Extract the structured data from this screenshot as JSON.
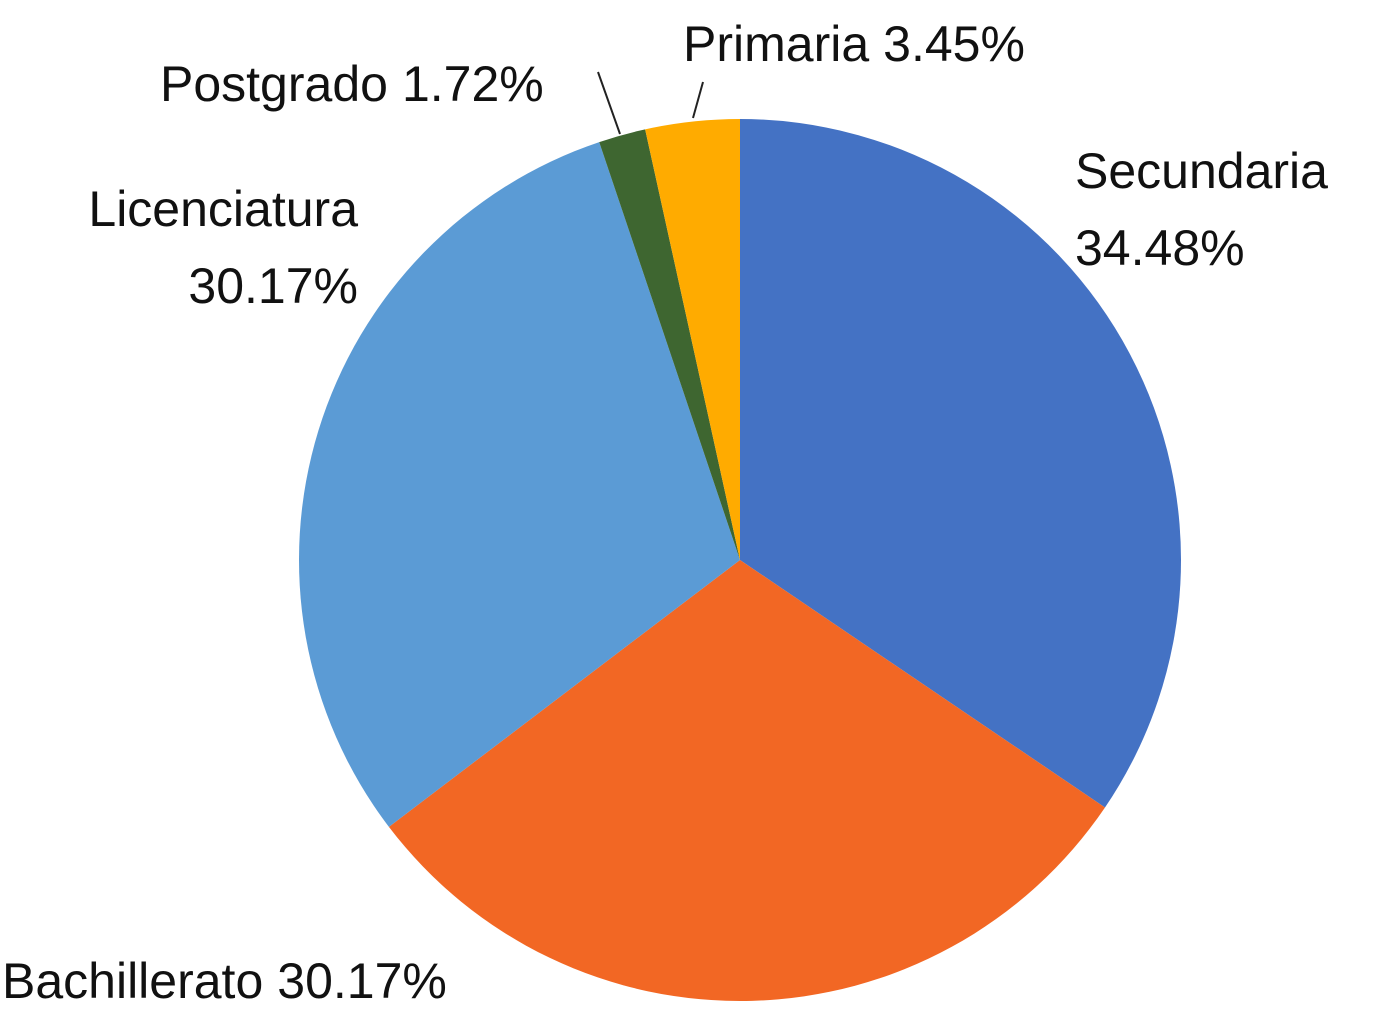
{
  "chart_data": {
    "type": "pie",
    "categories": [
      "Secundaria",
      "Bachillerato",
      "Licenciatura",
      "Postgrado",
      "Primaria"
    ],
    "values": [
      34.48,
      30.17,
      30.17,
      1.72,
      3.45
    ],
    "value_labels": [
      "34.48%",
      "30.17%",
      "30.17%",
      "1.72%",
      "3.45%"
    ],
    "colors": [
      "#4472c4",
      "#f26724",
      "#5b9bd5",
      "#3e6630",
      "#ffab00"
    ]
  }
}
